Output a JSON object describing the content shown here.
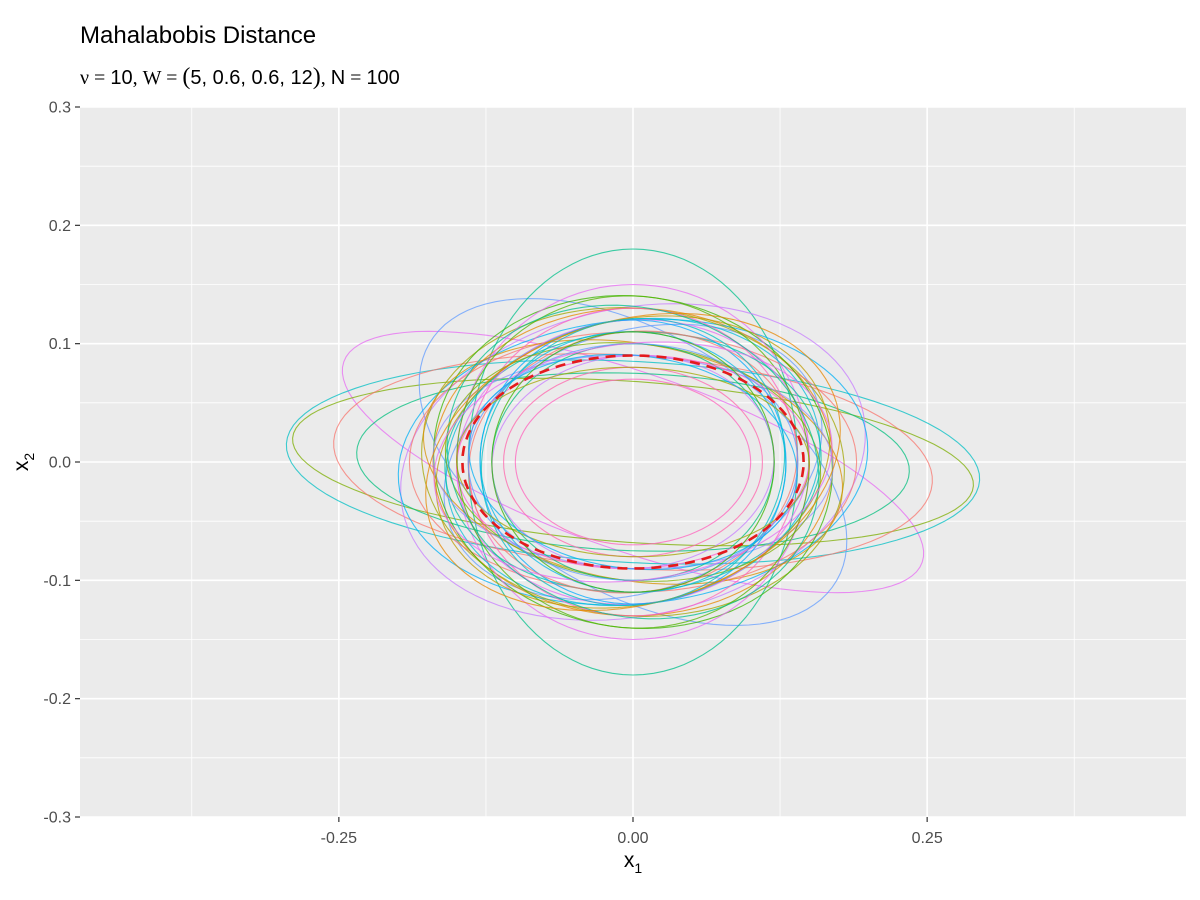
{
  "chart_data": {
    "type": "line",
    "title": "Mahalabobis Distance",
    "subtitle": {
      "nu_symbol": "ν",
      "nu_value": "10",
      "W_symbol": "W",
      "W_values": "5, 0.6, 0.6, 12",
      "N_symbol": "N",
      "N_value": "100",
      "equals": "=",
      "separator": ","
    },
    "xlabel": {
      "base": "x",
      "sub": "1"
    },
    "ylabel": {
      "base": "x",
      "sub": "2"
    },
    "xlim": [
      -0.47,
      0.47
    ],
    "ylim": [
      -0.3,
      0.3
    ],
    "x_ticks": [
      -0.25,
      0.0,
      0.25
    ],
    "x_tick_labels": [
      "-0.25",
      "0.00",
      "0.25"
    ],
    "y_ticks": [
      -0.3,
      -0.2,
      -0.1,
      0.0,
      0.1,
      0.2,
      0.3
    ],
    "y_tick_labels": [
      "-0.3",
      "-0.2",
      "-0.1",
      "0.0",
      "0.1",
      "0.2",
      "0.3"
    ],
    "grid": true,
    "background": "#ebebeb",
    "reference_ellipse": {
      "a": 0.145,
      "b": 0.09,
      "angle_deg": 0,
      "color": "#e41a1c",
      "style": "dashed"
    },
    "ellipses": [
      {
        "a": 0.26,
        "b": 0.075,
        "angle_deg": -19,
        "color": "#e76bf3"
      },
      {
        "a": 0.295,
        "b": 0.085,
        "angle_deg": -3,
        "color": "#00bfc4"
      },
      {
        "a": 0.29,
        "b": 0.068,
        "angle_deg": -4,
        "color": "#7cae00"
      },
      {
        "a": 0.255,
        "b": 0.09,
        "angle_deg": -4,
        "color": "#f8766d"
      },
      {
        "a": 0.235,
        "b": 0.075,
        "angle_deg": -2,
        "color": "#00bf7d"
      },
      {
        "a": 0.2,
        "b": 0.11,
        "angle_deg": -30,
        "color": "#619cff"
      },
      {
        "a": 0.165,
        "b": 0.11,
        "angle_deg": 18,
        "color": "#619cff"
      },
      {
        "a": 0.14,
        "b": 0.18,
        "angle_deg": 0,
        "color": "#00c08b"
      },
      {
        "a": 0.2,
        "b": 0.13,
        "angle_deg": 12,
        "color": "#c77cff"
      },
      {
        "a": 0.17,
        "b": 0.13,
        "angle_deg": 0,
        "color": "#e58700"
      },
      {
        "a": 0.2,
        "b": 0.12,
        "angle_deg": 5,
        "color": "#00b0f6"
      },
      {
        "a": 0.18,
        "b": 0.13,
        "angle_deg": -5,
        "color": "#a3a500"
      },
      {
        "a": 0.19,
        "b": 0.11,
        "angle_deg": 0,
        "color": "#f8766d"
      },
      {
        "a": 0.17,
        "b": 0.14,
        "angle_deg": -8,
        "color": "#39b600"
      },
      {
        "a": 0.15,
        "b": 0.15,
        "angle_deg": 0,
        "color": "#e76bf3"
      },
      {
        "a": 0.16,
        "b": 0.12,
        "angle_deg": 10,
        "color": "#00bcd8"
      },
      {
        "a": 0.18,
        "b": 0.1,
        "angle_deg": -10,
        "color": "#d89000"
      },
      {
        "a": 0.14,
        "b": 0.13,
        "angle_deg": 0,
        "color": "#ff62bc"
      },
      {
        "a": 0.16,
        "b": 0.11,
        "angle_deg": 3,
        "color": "#00c1a3"
      },
      {
        "a": 0.17,
        "b": 0.09,
        "angle_deg": -2,
        "color": "#9590ff"
      },
      {
        "a": 0.15,
        "b": 0.12,
        "angle_deg": 6,
        "color": "#e76bf3"
      },
      {
        "a": 0.13,
        "b": 0.12,
        "angle_deg": 0,
        "color": "#00a9ff"
      },
      {
        "a": 0.16,
        "b": 0.1,
        "angle_deg": -6,
        "color": "#7cae00"
      },
      {
        "a": 0.14,
        "b": 0.11,
        "angle_deg": 8,
        "color": "#f8766d"
      },
      {
        "a": 0.12,
        "b": 0.1,
        "angle_deg": 0,
        "color": "#00bf7d"
      },
      {
        "a": 0.15,
        "b": 0.09,
        "angle_deg": 2,
        "color": "#fd61d1"
      },
      {
        "a": 0.13,
        "b": 0.11,
        "angle_deg": -4,
        "color": "#00b8e7"
      },
      {
        "a": 0.17,
        "b": 0.12,
        "angle_deg": 14,
        "color": "#c09b00"
      },
      {
        "a": 0.15,
        "b": 0.14,
        "angle_deg": -12,
        "color": "#53b400"
      },
      {
        "a": 0.11,
        "b": 0.08,
        "angle_deg": 0,
        "color": "#ff65ac"
      },
      {
        "a": 0.14,
        "b": 0.1,
        "angle_deg": 0,
        "color": "#619cff"
      },
      {
        "a": 0.16,
        "b": 0.13,
        "angle_deg": -16,
        "color": "#00c08b"
      },
      {
        "a": 0.18,
        "b": 0.12,
        "angle_deg": 16,
        "color": "#e58700"
      },
      {
        "a": 0.12,
        "b": 0.09,
        "angle_deg": 4,
        "color": "#c77cff"
      },
      {
        "a": 0.1,
        "b": 0.07,
        "angle_deg": 0,
        "color": "#ff62bc"
      },
      {
        "a": 0.13,
        "b": 0.12,
        "angle_deg": 20,
        "color": "#00bfc4"
      },
      {
        "a": 0.15,
        "b": 0.08,
        "angle_deg": -1,
        "color": "#a3a500"
      },
      {
        "a": 0.17,
        "b": 0.1,
        "angle_deg": 7,
        "color": "#e76bf3"
      },
      {
        "a": 0.14,
        "b": 0.09,
        "angle_deg": -7,
        "color": "#00b0f6"
      },
      {
        "a": 0.12,
        "b": 0.11,
        "angle_deg": 0,
        "color": "#39b600"
      }
    ]
  }
}
